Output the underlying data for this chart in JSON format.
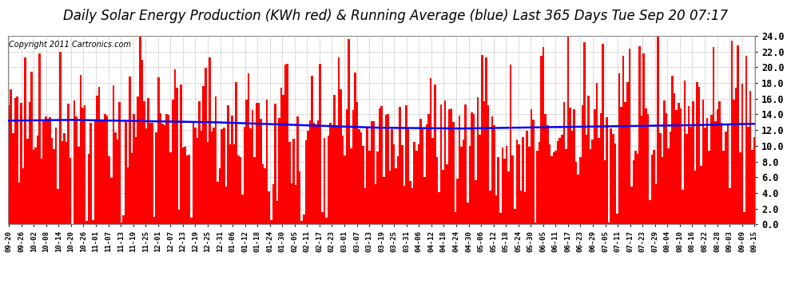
{
  "title": "Daily Solar Energy Production (KWh red) & Running Average (blue) Last 365 Days Tue Sep 20 07:17",
  "copyright": "Copyright 2011 Cartronics.com",
  "bar_color": "#ff0000",
  "avg_color": "#0000ff",
  "background_color": "#ffffff",
  "grid_color": "#bbbbbb",
  "ylim": [
    0.0,
    24.0
  ],
  "yticks": [
    0.0,
    2.0,
    4.0,
    6.0,
    8.0,
    10.0,
    12.0,
    14.0,
    16.0,
    18.0,
    20.0,
    22.0,
    24.0
  ],
  "n_days": 365,
  "seed": 77,
  "title_fontsize": 12,
  "copyright_fontsize": 7,
  "avg_level": 12.8,
  "avg_slope": -0.003,
  "bar_mean": 13.0,
  "bar_std": 4.5
}
